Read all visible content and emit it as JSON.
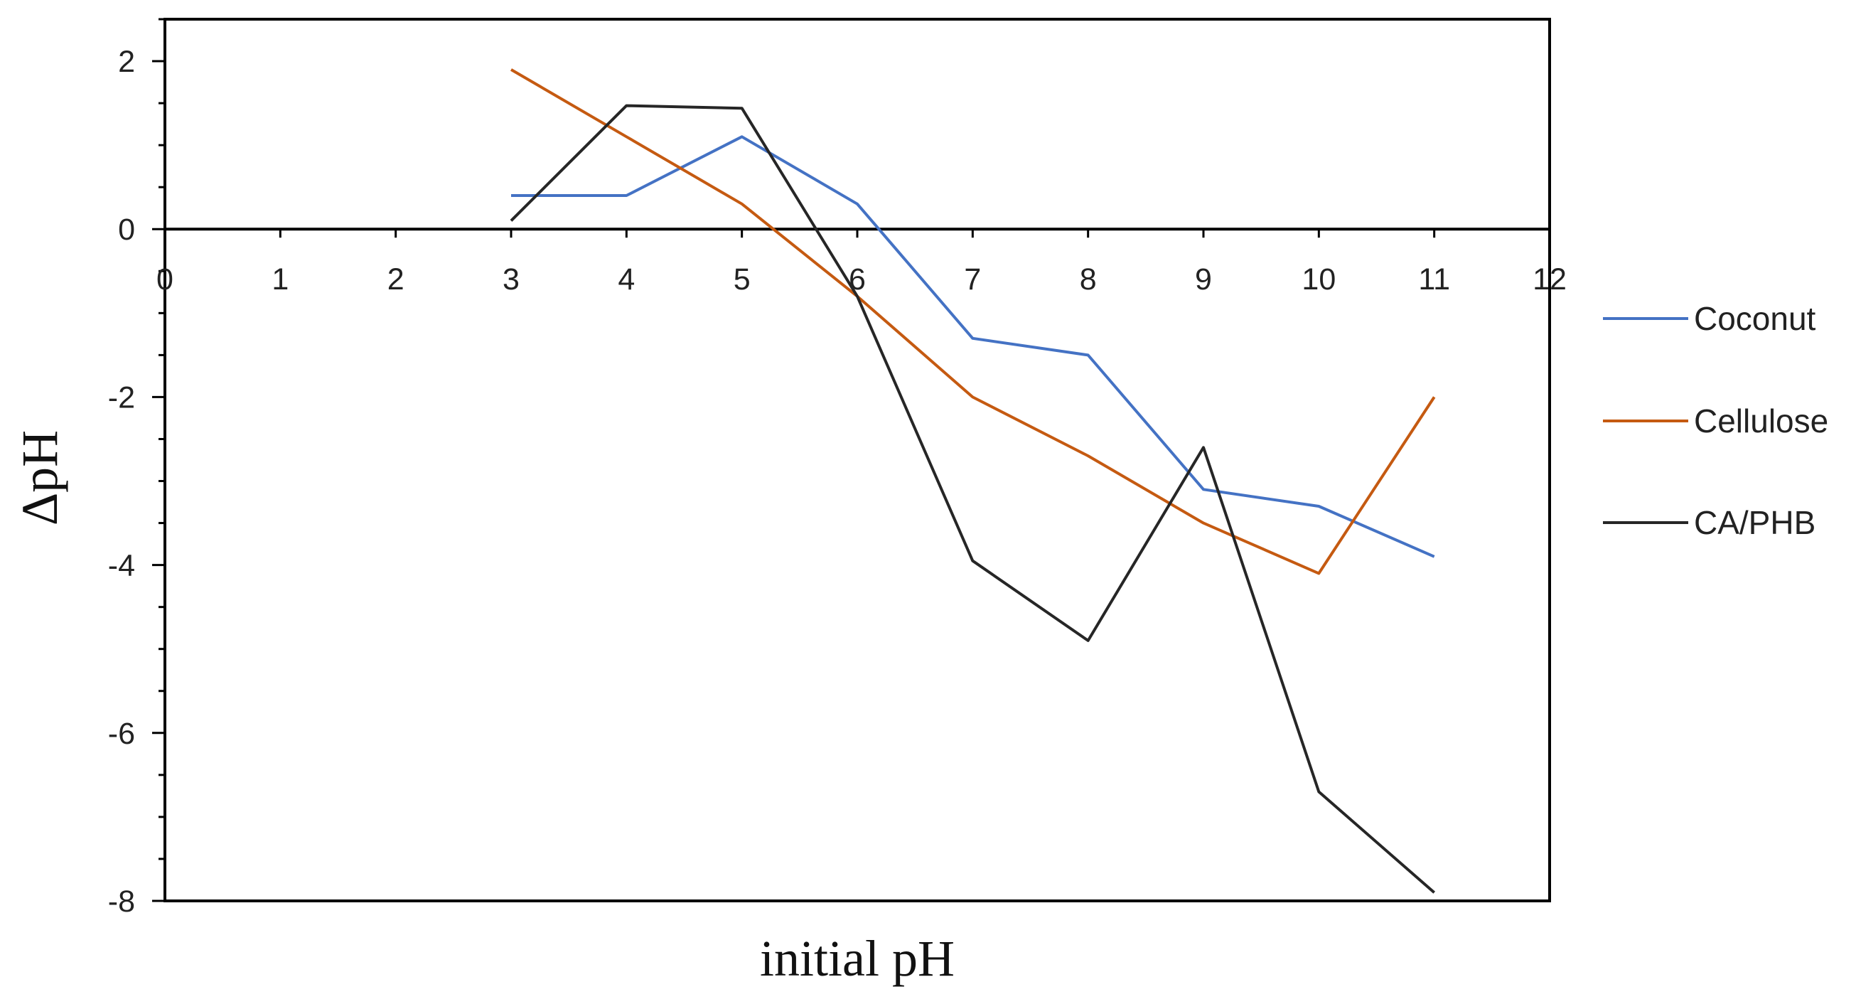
{
  "chart_data": {
    "type": "line",
    "title": "",
    "xlabel": "initial pH",
    "ylabel": "ΔpH",
    "xlim": [
      0,
      12
    ],
    "ylim": [
      -8,
      2.5
    ],
    "x_ticks": [
      0,
      1,
      2,
      3,
      4,
      5,
      6,
      7,
      8,
      9,
      10,
      11,
      12
    ],
    "y_ticks": [
      2,
      0,
      -2,
      -4,
      -6,
      -8
    ],
    "grid": false,
    "legend_position": "right",
    "x": [
      3,
      4,
      5,
      6,
      7,
      8,
      9,
      10,
      11
    ],
    "series": [
      {
        "name": "Coconut",
        "color": "#4472C4",
        "values": [
          0.4,
          0.4,
          1.1,
          0.3,
          -1.3,
          -1.5,
          -3.1,
          -3.3,
          -3.9
        ]
      },
      {
        "name": "Cellulose",
        "color": "#C55A11",
        "values": [
          1.9,
          1.1,
          0.3,
          -0.8,
          -2.0,
          -2.7,
          -3.5,
          -4.1,
          -2.0
        ]
      },
      {
        "name": "CA/PHB",
        "color": "#262626",
        "values": [
          0.1,
          1.47,
          1.44,
          -0.8,
          -3.95,
          -4.9,
          -2.6,
          -6.7,
          -7.9
        ]
      }
    ]
  }
}
